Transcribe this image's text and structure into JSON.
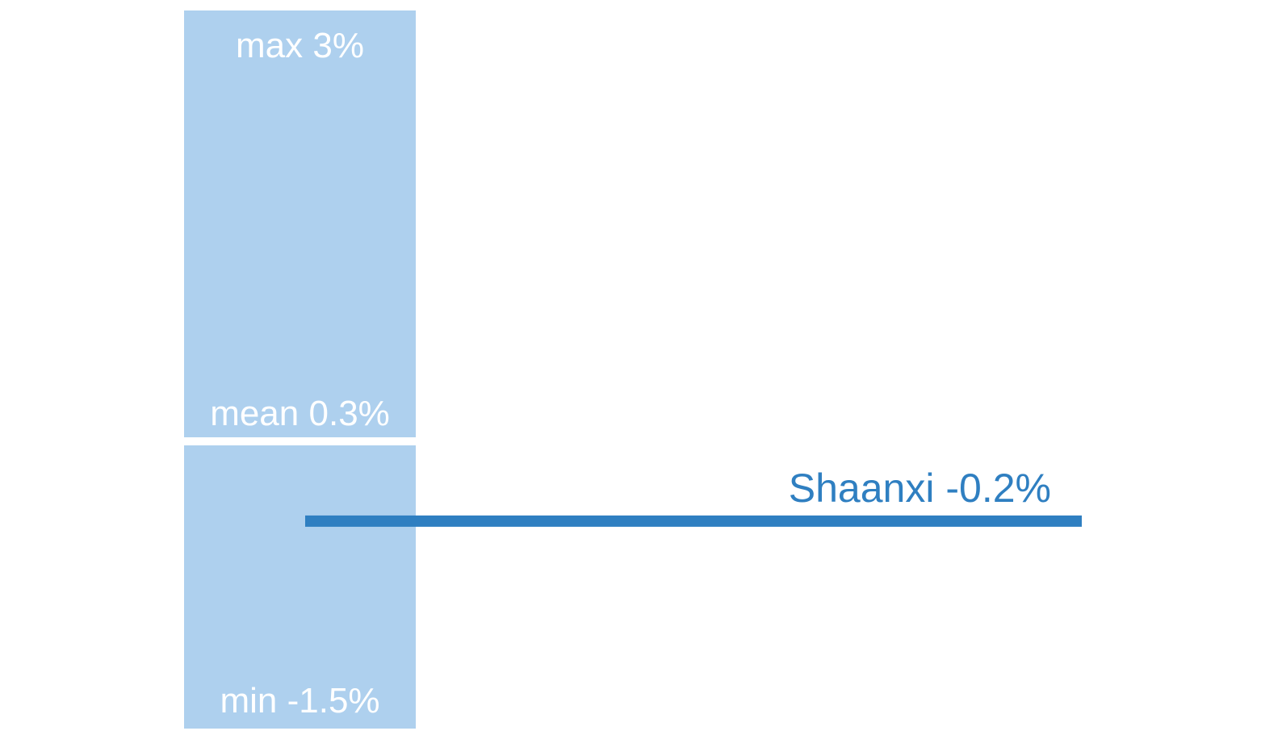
{
  "chart_data": {
    "type": "range",
    "stats": [
      {
        "name": "max",
        "value": 3,
        "value_label": "3%"
      },
      {
        "name": "mean",
        "value": 0.3,
        "value_label": "0.3%"
      },
      {
        "name": "min",
        "value": -1.5,
        "value_label": "-1.5%"
      }
    ],
    "band_color": "#aed0ee",
    "series": [
      {
        "name": "Shaanxi",
        "color": "#2f7fc1",
        "values": [
          -0.2
        ],
        "value_labels": [
          "-0.2%"
        ]
      }
    ]
  }
}
